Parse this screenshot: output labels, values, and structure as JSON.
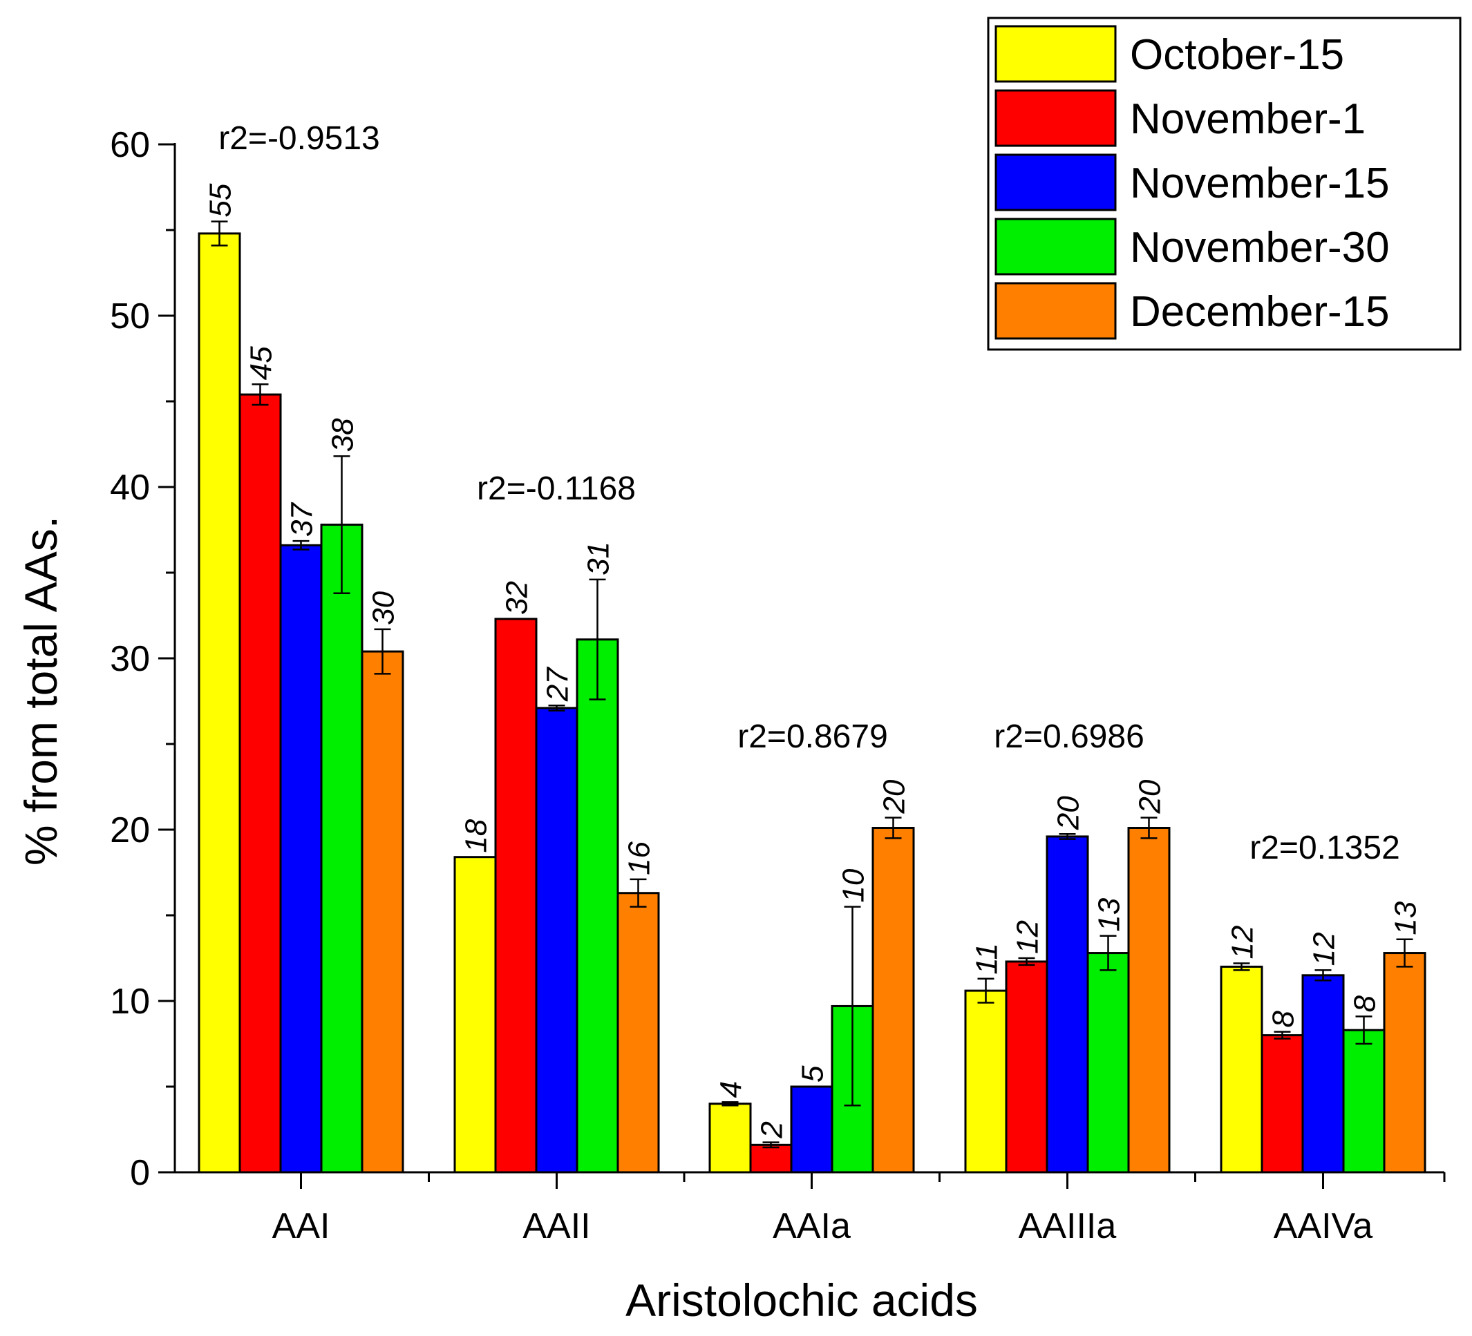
{
  "chart_data": {
    "type": "bar",
    "title": "",
    "xlabel": "Aristolochic acids",
    "ylabel": "% from total AAs.",
    "ylim": [
      0,
      60
    ],
    "yticks": [
      0,
      10,
      20,
      30,
      40,
      50,
      60
    ],
    "categories": [
      "AAI",
      "AAII",
      "AAIa",
      "AAIIIa",
      "AAIVa"
    ],
    "legend_position": "top-right",
    "series": [
      {
        "name": "October-15",
        "color": "#ffff00",
        "values": [
          54.8,
          18.4,
          4.0,
          10.6,
          12.0
        ],
        "errors": [
          0.7,
          0,
          0.1,
          0.7,
          0.2
        ],
        "labels": [
          "55",
          "18",
          "4",
          "11",
          "12"
        ]
      },
      {
        "name": "November-1",
        "color": "#ff0000",
        "values": [
          45.4,
          32.3,
          1.6,
          12.3,
          8.0
        ],
        "errors": [
          0.6,
          0,
          0.15,
          0.2,
          0.2
        ],
        "labels": [
          "45",
          "32",
          "2",
          "12",
          "8"
        ]
      },
      {
        "name": "November-15",
        "color": "#0000ff",
        "values": [
          36.6,
          27.1,
          5.0,
          19.6,
          11.5
        ],
        "errors": [
          0.25,
          0.15,
          0,
          0.15,
          0.3
        ],
        "labels": [
          "37",
          "27",
          "5",
          "20",
          "12"
        ]
      },
      {
        "name": "November-30",
        "color": "#00ee00",
        "values": [
          37.8,
          31.1,
          9.7,
          12.8,
          8.3
        ],
        "errors": [
          4.0,
          3.5,
          5.8,
          1.0,
          0.8
        ],
        "labels": [
          "38",
          "31",
          "10",
          "13",
          "8"
        ]
      },
      {
        "name": "December-15",
        "color": "#ff8000",
        "values": [
          30.4,
          16.3,
          20.1,
          20.1,
          12.8
        ],
        "errors": [
          1.3,
          0.8,
          0.6,
          0.6,
          0.8
        ],
        "labels": [
          "30",
          "16",
          "20",
          "20",
          "13"
        ]
      }
    ],
    "annotations": [
      {
        "category": "AAI",
        "text": "r2=-0.9513"
      },
      {
        "category": "AAII",
        "text": "r2=-0.1168"
      },
      {
        "category": "AAIa",
        "text": "r2=0.8679"
      },
      {
        "category": "AAIIIa",
        "text": "r2=0.6986"
      },
      {
        "category": "AAIVa",
        "text": "r2=0.1352"
      }
    ]
  }
}
